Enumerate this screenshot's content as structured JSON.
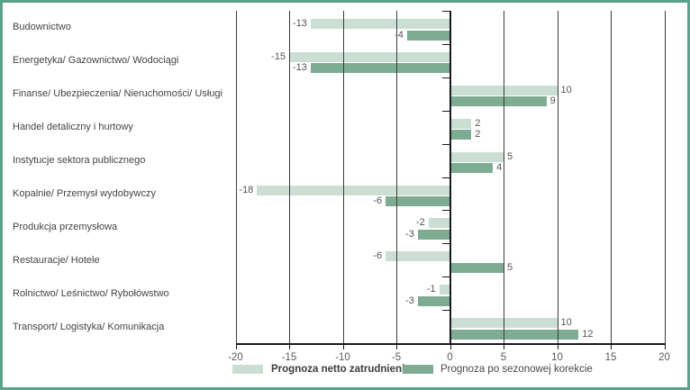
{
  "colors": {
    "frame_border": "#5ca18c",
    "background": "#ffffff",
    "grid_line": "#3b3b40",
    "axis_line": "#1b1b1f",
    "category_text": "#424448",
    "value_text": "#515459",
    "tick_text": "#57595d"
  },
  "chart_data": {
    "type": "bar",
    "orientation": "horizontal",
    "title": "",
    "xlabel": "",
    "ylabel": "",
    "xlim": [
      -20,
      20
    ],
    "xticks": [
      -20,
      -15,
      -10,
      -5,
      0,
      5,
      10,
      15,
      20
    ],
    "grid": true,
    "value_labels": true,
    "legend_position": "bottom",
    "categories": [
      "Budownictwo",
      "Energetyka/ Gazownictwo/ Wodociągi",
      "Finanse/ Ubezpieczenia/ Nieruchomości/ Usługi",
      "Handel detaliczny i hurtowy",
      "Instytucje sektora publicznego",
      "Kopalnie/ Przemysł wydobywczy",
      "Produkcja przemysłowa",
      "Restauracje/ Hotele",
      "Rolnictwo/ Leśnictwo/ Rybołówstwo",
      "Transport/ Logistyka/ Komunikacja"
    ],
    "series": [
      {
        "name": "Prognoza netto zatrudnienia",
        "color": "#cbded3",
        "values": [
          -13,
          -15,
          10,
          2,
          5,
          -18,
          -2,
          -6,
          -1,
          10
        ]
      },
      {
        "name": "Prognoza po sezonowej korekcie",
        "color": "#7dac93",
        "values": [
          -4,
          -13,
          9,
          2,
          4,
          -6,
          -3,
          5,
          -3,
          12
        ]
      }
    ]
  }
}
